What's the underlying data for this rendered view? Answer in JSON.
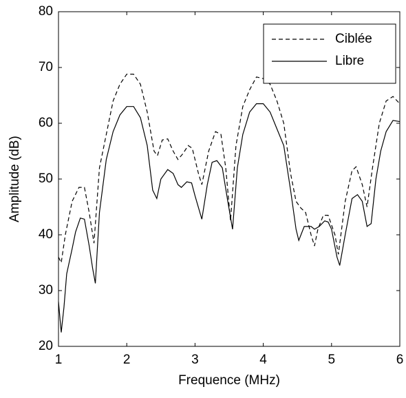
{
  "chart_data": {
    "type": "line",
    "xlabel": "Frequence (MHz)",
    "ylabel": "Amplitude (dB)",
    "xlim": [
      1,
      6
    ],
    "xticks": [
      1,
      2,
      3,
      4,
      5,
      6
    ],
    "ylim": [
      20,
      80
    ],
    "yticks": [
      20,
      30,
      40,
      50,
      60,
      70,
      80
    ],
    "legend": "northeast",
    "grid": false,
    "series": [
      {
        "name": "Ciblée",
        "color": "#000000",
        "line_style": "dashed",
        "x": [
          1.0,
          1.04,
          1.1,
          1.2,
          1.3,
          1.38,
          1.45,
          1.52,
          1.6,
          1.7,
          1.8,
          1.9,
          2.0,
          2.1,
          2.2,
          2.3,
          2.4,
          2.45,
          2.52,
          2.6,
          2.68,
          2.75,
          2.82,
          2.9,
          2.96,
          3.05,
          3.1,
          3.2,
          3.3,
          3.38,
          3.45,
          3.52,
          3.6,
          3.7,
          3.8,
          3.9,
          4.0,
          4.1,
          4.2,
          4.3,
          4.4,
          4.48,
          4.55,
          4.62,
          4.7,
          4.75,
          4.8,
          4.88,
          4.95,
          5.05,
          5.1,
          5.2,
          5.3,
          5.36,
          5.45,
          5.52,
          5.6,
          5.7,
          5.8,
          5.9,
          6.0
        ],
        "values": [
          36,
          35,
          40,
          46,
          48.5,
          48.5,
          44,
          38.5,
          52,
          58,
          64,
          67,
          68.8,
          68.8,
          67,
          62,
          55,
          54.2,
          57,
          57.2,
          55,
          53.5,
          54.5,
          56,
          55.5,
          51,
          49,
          55,
          58.5,
          58,
          52,
          42.5,
          56,
          63,
          66,
          68.3,
          68,
          67,
          64,
          60,
          51,
          46,
          44.8,
          44,
          40,
          38,
          41,
          43.5,
          43.5,
          40,
          36.5,
          46,
          51.5,
          52.2,
          49,
          45,
          52,
          60,
          64,
          64.8,
          63.5
        ]
      },
      {
        "name": "Libre",
        "color": "#000000",
        "line_style": "solid",
        "x": [
          1.0,
          1.04,
          1.08,
          1.12,
          1.2,
          1.25,
          1.32,
          1.38,
          1.45,
          1.5,
          1.54,
          1.6,
          1.7,
          1.8,
          1.9,
          2.0,
          2.1,
          2.2,
          2.3,
          2.38,
          2.44,
          2.5,
          2.6,
          2.68,
          2.75,
          2.8,
          2.88,
          2.95,
          3.0,
          3.1,
          3.18,
          3.25,
          3.32,
          3.4,
          3.48,
          3.55,
          3.62,
          3.7,
          3.8,
          3.9,
          4.0,
          4.1,
          4.2,
          4.3,
          4.4,
          4.48,
          4.52,
          4.6,
          4.7,
          4.75,
          4.82,
          4.9,
          4.95,
          5.0,
          5.08,
          5.12,
          5.2,
          5.3,
          5.38,
          5.45,
          5.52,
          5.58,
          5.65,
          5.72,
          5.8,
          5.9,
          6.0
        ],
        "values": [
          28,
          22.5,
          27,
          33,
          37.5,
          40.5,
          43,
          42.8,
          38,
          34,
          31.3,
          44,
          53.5,
          58.5,
          61.5,
          63,
          63,
          61,
          56,
          48,
          46.5,
          50,
          51.7,
          51,
          49,
          48.5,
          49.5,
          49.3,
          47,
          42.8,
          49,
          53,
          53.3,
          52,
          46,
          41,
          52,
          58,
          62,
          63.5,
          63.5,
          62,
          59,
          56,
          48,
          41,
          39,
          41.5,
          41.5,
          41,
          41.5,
          42.5,
          42.3,
          41,
          36,
          34.5,
          40,
          46.5,
          47.2,
          46,
          41.5,
          42,
          50,
          55,
          58.5,
          60.5,
          60.3
        ]
      }
    ]
  }
}
